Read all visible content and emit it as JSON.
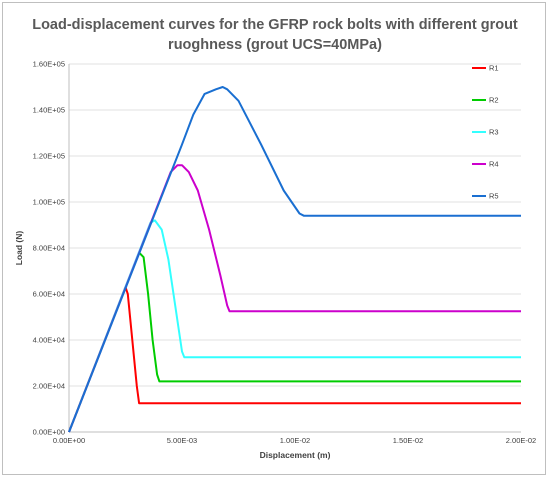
{
  "chart_data": {
    "type": "line",
    "title_line1": "Load-displacement curves for the GFRP rock bolts with different grout",
    "title_line2": "ruoghness (grout UCS=40MPa)",
    "xlabel": "Displacement (m)",
    "ylabel": "Load (N)",
    "xlim": [
      0,
      0.02
    ],
    "ylim": [
      0,
      160000
    ],
    "x_ticks": [
      0,
      0.005,
      0.01,
      0.015,
      0.02
    ],
    "x_tick_labels": [
      "0.00E+00",
      "5.00E-03",
      "1.00E-02",
      "1.50E-02",
      "2.00E-02"
    ],
    "y_ticks": [
      0,
      20000,
      40000,
      60000,
      80000,
      100000,
      120000,
      140000,
      160000
    ],
    "y_tick_labels": [
      "0.00E+00",
      "2.00E+04",
      "4.00E+04",
      "6.00E+04",
      "8.00E+04",
      "1.00E+05",
      "1.20E+05",
      "1.40E+05",
      "1.60E+05"
    ],
    "grid": "horizontal",
    "legend_position": "right",
    "series": [
      {
        "name": "R1",
        "color": "#ff0000",
        "x": [
          0,
          0.0025,
          0.0026,
          0.0028,
          0.003,
          0.0031,
          0.02
        ],
        "y": [
          0,
          63000,
          60000,
          40000,
          20000,
          12500,
          12500
        ]
      },
      {
        "name": "R2",
        "color": "#00cc00",
        "x": [
          0,
          0.0031,
          0.0033,
          0.0035,
          0.0037,
          0.0039,
          0.004,
          0.02
        ],
        "y": [
          0,
          78000,
          76000,
          60000,
          40000,
          25000,
          22000,
          22000
        ]
      },
      {
        "name": "R3",
        "color": "#33ffff",
        "x": [
          0,
          0.0036,
          0.0038,
          0.0041,
          0.0044,
          0.0047,
          0.005,
          0.0051,
          0.02
        ],
        "y": [
          0,
          91000,
          92000,
          88000,
          75000,
          55000,
          35000,
          32500,
          32500
        ]
      },
      {
        "name": "R4",
        "color": "#cc00cc",
        "x": [
          0,
          0.0045,
          0.0048,
          0.005,
          0.0053,
          0.0057,
          0.0062,
          0.0067,
          0.007,
          0.0071,
          0.02
        ],
        "y": [
          0,
          113000,
          116000,
          116000,
          113000,
          105000,
          88000,
          68000,
          55000,
          52500,
          52500
        ]
      },
      {
        "name": "R5",
        "color": "#1a6fd1",
        "x": [
          0,
          0.005,
          0.0055,
          0.006,
          0.0065,
          0.0068,
          0.007,
          0.0075,
          0.0085,
          0.0095,
          0.0102,
          0.0104,
          0.02
        ],
        "y": [
          0,
          125000,
          138000,
          147000,
          149000,
          150000,
          149000,
          144000,
          125000,
          105000,
          95000,
          94000,
          94000
        ]
      }
    ]
  }
}
